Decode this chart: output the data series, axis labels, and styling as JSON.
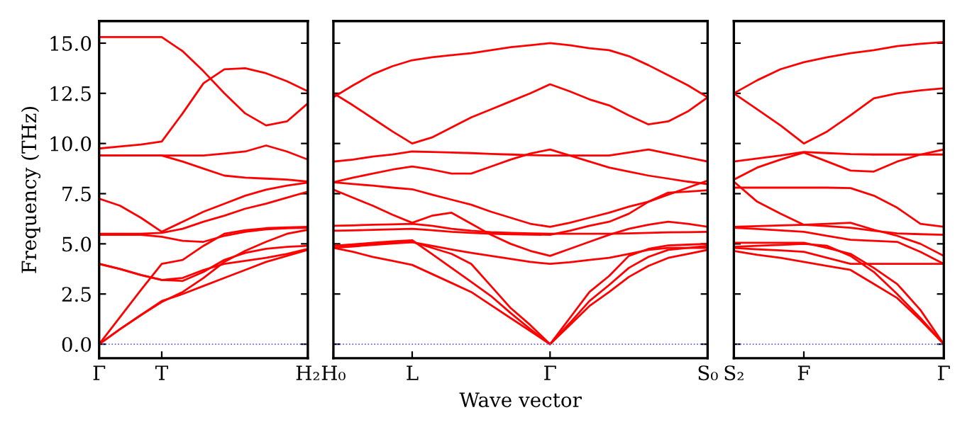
{
  "chart_data": [
    {
      "type": "line",
      "ylabel": "Frequency (THz)",
      "ylim": [
        -0.7,
        16.1
      ],
      "categories": [
        "Γ",
        null,
        null,
        "T",
        null,
        null,
        null,
        null,
        null,
        null,
        "H₂"
      ],
      "yticks": [
        {
          "value": 0,
          "label": "0.0"
        },
        {
          "value": 2.5,
          "label": "2.5"
        },
        {
          "value": 5,
          "label": "5.0"
        },
        {
          "value": 7.5,
          "label": "7.5"
        },
        {
          "value": 10,
          "label": "10.0"
        },
        {
          "value": 12.5,
          "label": "12.5"
        },
        {
          "value": 15,
          "label": "15.0"
        }
      ],
      "ref_lines": [
        {
          "axis": "y",
          "value": 0,
          "color": "#6060ff",
          "line_style": "dotted"
        }
      ],
      "grid": false,
      "marker": "none",
      "line_style": "solid",
      "series": [
        {
          "color": "#ff0000",
          "values": [
            15.3,
            15.3,
            15.3,
            15.3,
            14.6,
            13.6,
            12.5,
            11.5,
            10.9,
            11.1,
            12.0
          ]
        },
        {
          "color": "#ff0000",
          "values": [
            9.75,
            9.85,
            9.95,
            10.1,
            11.5,
            13.0,
            13.7,
            13.75,
            13.5,
            13.1,
            12.6
          ]
        },
        {
          "color": "#ff0000",
          "values": [
            9.4,
            9.4,
            9.4,
            9.4,
            9.4,
            9.4,
            9.5,
            9.6,
            9.9,
            9.6,
            9.2
          ]
        },
        {
          "color": "#ff0000",
          "values": [
            9.4,
            9.4,
            9.4,
            9.4,
            9.1,
            8.75,
            8.4,
            8.3,
            8.25,
            8.2,
            8.1
          ]
        },
        {
          "color": "#ff0000",
          "values": [
            7.25,
            6.9,
            6.3,
            5.6,
            6.1,
            6.6,
            7.0,
            7.4,
            7.7,
            7.9,
            8.05
          ]
        },
        {
          "color": "#ff0000",
          "values": [
            5.45,
            5.45,
            5.45,
            5.35,
            5.15,
            5.1,
            5.4,
            5.6,
            5.72,
            5.78,
            5.8
          ]
        },
        {
          "color": "#ff0000",
          "values": [
            5.5,
            5.5,
            5.5,
            5.55,
            5.75,
            6.1,
            6.4,
            6.75,
            7.0,
            7.3,
            7.6
          ]
        },
        {
          "color": "#ff0000",
          "values": [
            4.0,
            3.75,
            3.45,
            3.2,
            3.15,
            3.6,
            4.2,
            4.55,
            4.75,
            4.85,
            4.9
          ]
        },
        {
          "color": "#ff0000",
          "values": [
            4.0,
            3.75,
            3.45,
            3.2,
            3.3,
            3.7,
            4.0,
            4.15,
            4.3,
            4.5,
            4.75
          ]
        },
        {
          "color": "#ff0000",
          "values": [
            0,
            1.35,
            2.7,
            4.0,
            4.2,
            4.9,
            5.5,
            5.68,
            5.78,
            5.82,
            5.85
          ]
        },
        {
          "color": "#ff0000",
          "values": [
            0,
            0.75,
            1.45,
            2.1,
            2.6,
            3.3,
            4.1,
            4.65,
            5.1,
            5.5,
            5.7
          ]
        },
        {
          "color": "#ff0000",
          "values": [
            0,
            0.75,
            1.45,
            2.15,
            2.5,
            2.9,
            3.3,
            3.7,
            4.1,
            4.4,
            4.7
          ]
        }
      ]
    },
    {
      "type": "line",
      "xlabel": "Wave vector",
      "ylim": [
        -0.7,
        16.1
      ],
      "tick_labels": "x",
      "categories": [
        "H₀",
        null,
        null,
        null,
        "L",
        null,
        null,
        null,
        null,
        null,
        null,
        "Γ",
        null,
        null,
        null,
        null,
        null,
        null,
        null,
        "S₀"
      ],
      "yticks": [
        {
          "value": 0,
          "label": null
        },
        {
          "value": 2.5,
          "label": null
        },
        {
          "value": 5,
          "label": null
        },
        {
          "value": 7.5,
          "label": null
        },
        {
          "value": 10,
          "label": null
        },
        {
          "value": 12.5,
          "label": null
        },
        {
          "value": 15,
          "label": null
        }
      ],
      "ref_lines": [
        {
          "axis": "y",
          "value": 0,
          "color": "#6060ff",
          "line_style": "dotted"
        }
      ],
      "grid": false,
      "marker": "none",
      "line_style": "solid",
      "series": [
        {
          "color": "#ff0000",
          "values": [
            12.3,
            12.9,
            13.45,
            13.85,
            14.15,
            14.3,
            14.4,
            14.5,
            14.65,
            14.8,
            14.9,
            15.0,
            14.9,
            14.75,
            14.65,
            14.35,
            13.9,
            13.4,
            12.9,
            12.3
          ]
        },
        {
          "color": "#ff0000",
          "values": [
            12.5,
            11.9,
            11.25,
            10.6,
            10.0,
            10.3,
            10.8,
            11.3,
            11.7,
            12.1,
            12.5,
            12.95,
            12.6,
            12.2,
            11.9,
            11.4,
            10.95,
            11.1,
            11.6,
            12.3
          ]
        },
        {
          "color": "#ff0000",
          "values": [
            9.1,
            9.2,
            9.35,
            9.45,
            9.6,
            9.58,
            9.55,
            9.52,
            9.48,
            9.45,
            9.42,
            9.4,
            9.4,
            9.4,
            9.4,
            9.55,
            9.7,
            9.5,
            9.3,
            9.1
          ]
        },
        {
          "color": "#ff0000",
          "values": [
            8.07,
            8.3,
            8.5,
            8.7,
            8.85,
            8.7,
            8.5,
            8.5,
            8.85,
            9.2,
            9.5,
            9.7,
            9.4,
            9.1,
            8.8,
            8.6,
            8.4,
            8.25,
            8.1,
            7.98
          ]
        },
        {
          "color": "#ff0000",
          "values": [
            8.07,
            7.98,
            7.9,
            7.8,
            7.72,
            7.45,
            7.2,
            6.95,
            6.6,
            6.3,
            6.0,
            5.85,
            6.05,
            6.3,
            6.55,
            6.85,
            7.1,
            7.45,
            7.8,
            8.15
          ]
        },
        {
          "color": "#ff0000",
          "values": [
            7.7,
            7.3,
            6.9,
            6.45,
            6.05,
            6.4,
            6.55,
            6.0,
            5.45,
            5.0,
            4.65,
            4.4,
            4.75,
            5.1,
            5.45,
            5.75,
            5.95,
            6.1,
            6.0,
            5.85
          ]
        },
        {
          "color": "#ff0000",
          "values": [
            5.9,
            5.92,
            5.95,
            5.97,
            6.0,
            5.9,
            5.75,
            5.65,
            5.58,
            5.55,
            5.52,
            5.5,
            5.5,
            5.5,
            5.5,
            5.52,
            5.55,
            5.57,
            5.58,
            5.6
          ]
        },
        {
          "color": "#ff0000",
          "values": [
            5.65,
            5.67,
            5.7,
            5.72,
            5.75,
            5.68,
            5.6,
            5.55,
            5.5,
            5.48,
            5.46,
            5.45,
            5.65,
            5.9,
            6.1,
            6.5,
            7.1,
            7.55,
            7.6,
            7.67
          ]
        },
        {
          "color": "#ff0000",
          "values": [
            4.9,
            4.95,
            5.0,
            5.05,
            5.1,
            4.8,
            4.5,
            4.0,
            2.9,
            1.8,
            0.95,
            0,
            1.3,
            2.6,
            3.4,
            4.4,
            4.75,
            4.92,
            4.96,
            5.0
          ]
        },
        {
          "color": "#ff0000",
          "values": [
            4.8,
            4.87,
            4.95,
            5.02,
            5.08,
            4.9,
            4.72,
            4.55,
            4.4,
            4.25,
            4.1,
            4.0,
            4.08,
            4.2,
            4.3,
            4.5,
            4.7,
            4.8,
            4.8,
            4.8
          ]
        },
        {
          "color": "#ff0000",
          "values": [
            4.8,
            4.6,
            4.35,
            4.15,
            3.95,
            3.5,
            3.05,
            2.6,
            1.95,
            1.3,
            0.65,
            0,
            1.05,
            2.15,
            2.95,
            3.8,
            4.35,
            4.7,
            4.8,
            4.9
          ]
        },
        {
          "color": "#ff0000",
          "values": [
            4.9,
            4.97,
            5.05,
            5.12,
            5.18,
            4.5,
            3.8,
            3.1,
            2.4,
            1.55,
            0.75,
            0,
            0.95,
            1.9,
            2.6,
            3.35,
            3.9,
            4.3,
            4.5,
            4.7
          ]
        }
      ]
    },
    {
      "type": "line",
      "ylim": [
        -0.7,
        16.1
      ],
      "tick_labels": "x",
      "categories": [
        "S₂",
        null,
        null,
        "F",
        null,
        null,
        null,
        null,
        null,
        "Γ"
      ],
      "yticks": [
        {
          "value": 0,
          "label": null
        },
        {
          "value": 2.5,
          "label": null
        },
        {
          "value": 5,
          "label": null
        },
        {
          "value": 7.5,
          "label": null
        },
        {
          "value": 10,
          "label": null
        },
        {
          "value": 12.5,
          "label": null
        },
        {
          "value": 15,
          "label": null
        }
      ],
      "ref_lines": [
        {
          "axis": "y",
          "value": 0,
          "color": "#6060ff",
          "line_style": "dotted"
        }
      ],
      "grid": false,
      "marker": "none",
      "line_style": "solid",
      "series": [
        {
          "color": "#ff0000",
          "values": [
            12.5,
            13.15,
            13.7,
            14.05,
            14.3,
            14.5,
            14.65,
            14.85,
            14.97,
            15.05
          ]
        },
        {
          "color": "#ff0000",
          "values": [
            12.5,
            11.7,
            10.9,
            10.0,
            10.6,
            11.4,
            12.25,
            12.5,
            12.65,
            12.75
          ]
        },
        {
          "color": "#ff0000",
          "values": [
            9.1,
            9.25,
            9.4,
            9.58,
            9.52,
            9.47,
            9.45,
            9.45,
            9.45,
            9.45
          ]
        },
        {
          "color": "#ff0000",
          "values": [
            8.2,
            8.8,
            9.2,
            9.55,
            9.1,
            8.65,
            8.6,
            9.1,
            9.45,
            9.7
          ]
        },
        {
          "color": "#ff0000",
          "values": [
            7.8,
            7.8,
            7.8,
            7.8,
            7.8,
            7.78,
            7.4,
            6.8,
            6.0,
            5.85
          ]
        },
        {
          "color": "#ff0000",
          "values": [
            8.1,
            7.1,
            6.5,
            5.95,
            6.0,
            6.05,
            5.7,
            5.4,
            5.0,
            4.4
          ]
        },
        {
          "color": "#ff0000",
          "values": [
            5.85,
            5.88,
            5.92,
            5.95,
            5.88,
            5.8,
            5.65,
            5.52,
            5.48,
            5.45
          ]
        },
        {
          "color": "#ff0000",
          "values": [
            5.8,
            5.74,
            5.67,
            5.6,
            5.4,
            5.2,
            5.15,
            5.1,
            4.6,
            4.0
          ]
        },
        {
          "color": "#ff0000",
          "values": [
            5.05,
            5.05,
            5.05,
            5.05,
            4.8,
            4.5,
            3.8,
            3.0,
            1.7,
            0
          ]
        },
        {
          "color": "#ff0000",
          "values": [
            4.8,
            4.73,
            4.67,
            4.6,
            4.3,
            4.0,
            4.0,
            4.0,
            4.0,
            4.0
          ]
        },
        {
          "color": "#ff0000",
          "values": [
            4.65,
            4.45,
            4.3,
            4.1,
            3.9,
            3.7,
            3.0,
            2.3,
            1.2,
            0
          ]
        },
        {
          "color": "#ff0000",
          "values": [
            4.85,
            4.9,
            4.95,
            5.0,
            4.9,
            4.4,
            3.6,
            2.5,
            1.3,
            0
          ]
        }
      ]
    }
  ]
}
